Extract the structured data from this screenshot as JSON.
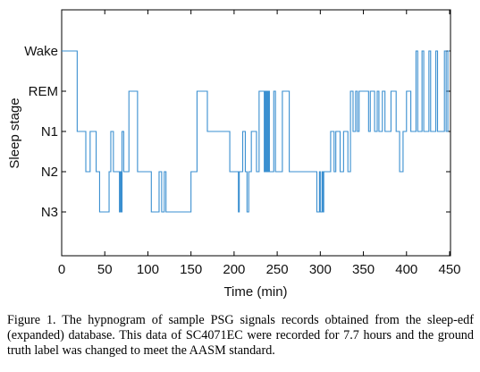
{
  "chart_data": {
    "type": "line",
    "title": "",
    "xlabel": "Time (min)",
    "ylabel": "Sleep stage",
    "xlim": [
      0,
      450
    ],
    "x_ticks": [
      0,
      50,
      100,
      150,
      200,
      250,
      300,
      350,
      400,
      450
    ],
    "y_categories": [
      "N3",
      "N2",
      "N1",
      "REM",
      "Wake"
    ],
    "grid": false,
    "legend": "none",
    "line_color": "#3a8fd0",
    "series": [
      {
        "points": [
          [
            0,
            4
          ],
          [
            18,
            4
          ],
          [
            18,
            2
          ],
          [
            28,
            2
          ],
          [
            28,
            1
          ],
          [
            33,
            1
          ],
          [
            33,
            2
          ],
          [
            40,
            2
          ],
          [
            40,
            1
          ],
          [
            44,
            1
          ],
          [
            44,
            0
          ],
          [
            55,
            0
          ],
          [
            55,
            1
          ],
          [
            57,
            1
          ],
          [
            57,
            2
          ],
          [
            60,
            2
          ],
          [
            60,
            1
          ],
          [
            67,
            1
          ],
          [
            67,
            0
          ],
          [
            68,
            0
          ],
          [
            68,
            1
          ],
          [
            69,
            1
          ],
          [
            69,
            0
          ],
          [
            70,
            0
          ],
          [
            70,
            2
          ],
          [
            72,
            2
          ],
          [
            72,
            1
          ],
          [
            78,
            1
          ],
          [
            78,
            3
          ],
          [
            88,
            3
          ],
          [
            88,
            1
          ],
          [
            98,
            1
          ],
          [
            98,
            1
          ],
          [
            104,
            1
          ],
          [
            104,
            0
          ],
          [
            113,
            0
          ],
          [
            113,
            1
          ],
          [
            116,
            1
          ],
          [
            116,
            0
          ],
          [
            119,
            0
          ],
          [
            119,
            1
          ],
          [
            121,
            1
          ],
          [
            121,
            0
          ],
          [
            150,
            0
          ],
          [
            150,
            1
          ],
          [
            157,
            1
          ],
          [
            157,
            3
          ],
          [
            169,
            3
          ],
          [
            169,
            2
          ],
          [
            195,
            2
          ],
          [
            195,
            1
          ],
          [
            205,
            1
          ],
          [
            205,
            0
          ],
          [
            206,
            0
          ],
          [
            206,
            1
          ],
          [
            210,
            1
          ],
          [
            210,
            2
          ],
          [
            213,
            2
          ],
          [
            213,
            1
          ],
          [
            215,
            1
          ],
          [
            215,
            0
          ],
          [
            217,
            0
          ],
          [
            217,
            1
          ],
          [
            220,
            1
          ],
          [
            220,
            2
          ],
          [
            226,
            2
          ],
          [
            226,
            1
          ],
          [
            229,
            1
          ],
          [
            229,
            3
          ],
          [
            235,
            3
          ],
          [
            235,
            1
          ],
          [
            236,
            1
          ],
          [
            236,
            3
          ],
          [
            237,
            3
          ],
          [
            237,
            1
          ],
          [
            238,
            1
          ],
          [
            238,
            3
          ],
          [
            239,
            3
          ],
          [
            239,
            1
          ],
          [
            240,
            1
          ],
          [
            240,
            3
          ],
          [
            241,
            3
          ],
          [
            241,
            1
          ],
          [
            246,
            1
          ],
          [
            246,
            3
          ],
          [
            248,
            3
          ],
          [
            248,
            1
          ],
          [
            256,
            1
          ],
          [
            256,
            3
          ],
          [
            264,
            3
          ],
          [
            264,
            1
          ],
          [
            296,
            1
          ],
          [
            296,
            0
          ],
          [
            299,
            0
          ],
          [
            299,
            1
          ],
          [
            300,
            1
          ],
          [
            300,
            0
          ],
          [
            302,
            0
          ],
          [
            302,
            1
          ],
          [
            303,
            1
          ],
          [
            303,
            0
          ],
          [
            304,
            0
          ],
          [
            304,
            1
          ],
          [
            312,
            1
          ],
          [
            312,
            2
          ],
          [
            316,
            2
          ],
          [
            316,
            1
          ],
          [
            318,
            1
          ],
          [
            318,
            2
          ],
          [
            323,
            2
          ],
          [
            323,
            1
          ],
          [
            327,
            1
          ],
          [
            327,
            2
          ],
          [
            332,
            2
          ],
          [
            332,
            1
          ],
          [
            335,
            1
          ],
          [
            335,
            3
          ],
          [
            338,
            3
          ],
          [
            338,
            2
          ],
          [
            341,
            2
          ],
          [
            341,
            3
          ],
          [
            343,
            3
          ],
          [
            343,
            2
          ],
          [
            345,
            2
          ],
          [
            345,
            3
          ],
          [
            356,
            3
          ],
          [
            356,
            2
          ],
          [
            358,
            2
          ],
          [
            358,
            3
          ],
          [
            363,
            3
          ],
          [
            363,
            2
          ],
          [
            366,
            2
          ],
          [
            366,
            3
          ],
          [
            368,
            3
          ],
          [
            368,
            2
          ],
          [
            372,
            2
          ],
          [
            372,
            3
          ],
          [
            375,
            3
          ],
          [
            375,
            2
          ],
          [
            379,
            2
          ],
          [
            379,
            2
          ],
          [
            382,
            2
          ],
          [
            382,
            3
          ],
          [
            388,
            3
          ],
          [
            388,
            2
          ],
          [
            392,
            2
          ],
          [
            392,
            1
          ],
          [
            396,
            1
          ],
          [
            396,
            2
          ],
          [
            400,
            2
          ],
          [
            400,
            3
          ],
          [
            405,
            3
          ],
          [
            405,
            2
          ],
          [
            411,
            2
          ],
          [
            411,
            4
          ],
          [
            413,
            4
          ],
          [
            413,
            2
          ],
          [
            418,
            2
          ],
          [
            418,
            4
          ],
          [
            420,
            4
          ],
          [
            420,
            2
          ],
          [
            426,
            2
          ],
          [
            426,
            4
          ],
          [
            428,
            4
          ],
          [
            428,
            2
          ],
          [
            434,
            2
          ],
          [
            434,
            4
          ],
          [
            436,
            4
          ],
          [
            436,
            2
          ],
          [
            444,
            2
          ],
          [
            444,
            4
          ],
          [
            446,
            4
          ],
          [
            446,
            2
          ],
          [
            448,
            2
          ],
          [
            448,
            4
          ],
          [
            450,
            4
          ]
        ]
      }
    ]
  },
  "caption": "Figure 1. The hypnogram of sample PSG signals records obtained from the sleep-edf (expanded) database. This data of SC4071EC were recorded for 7.7 hours and the ground truth label was changed to meet the AASM standard."
}
